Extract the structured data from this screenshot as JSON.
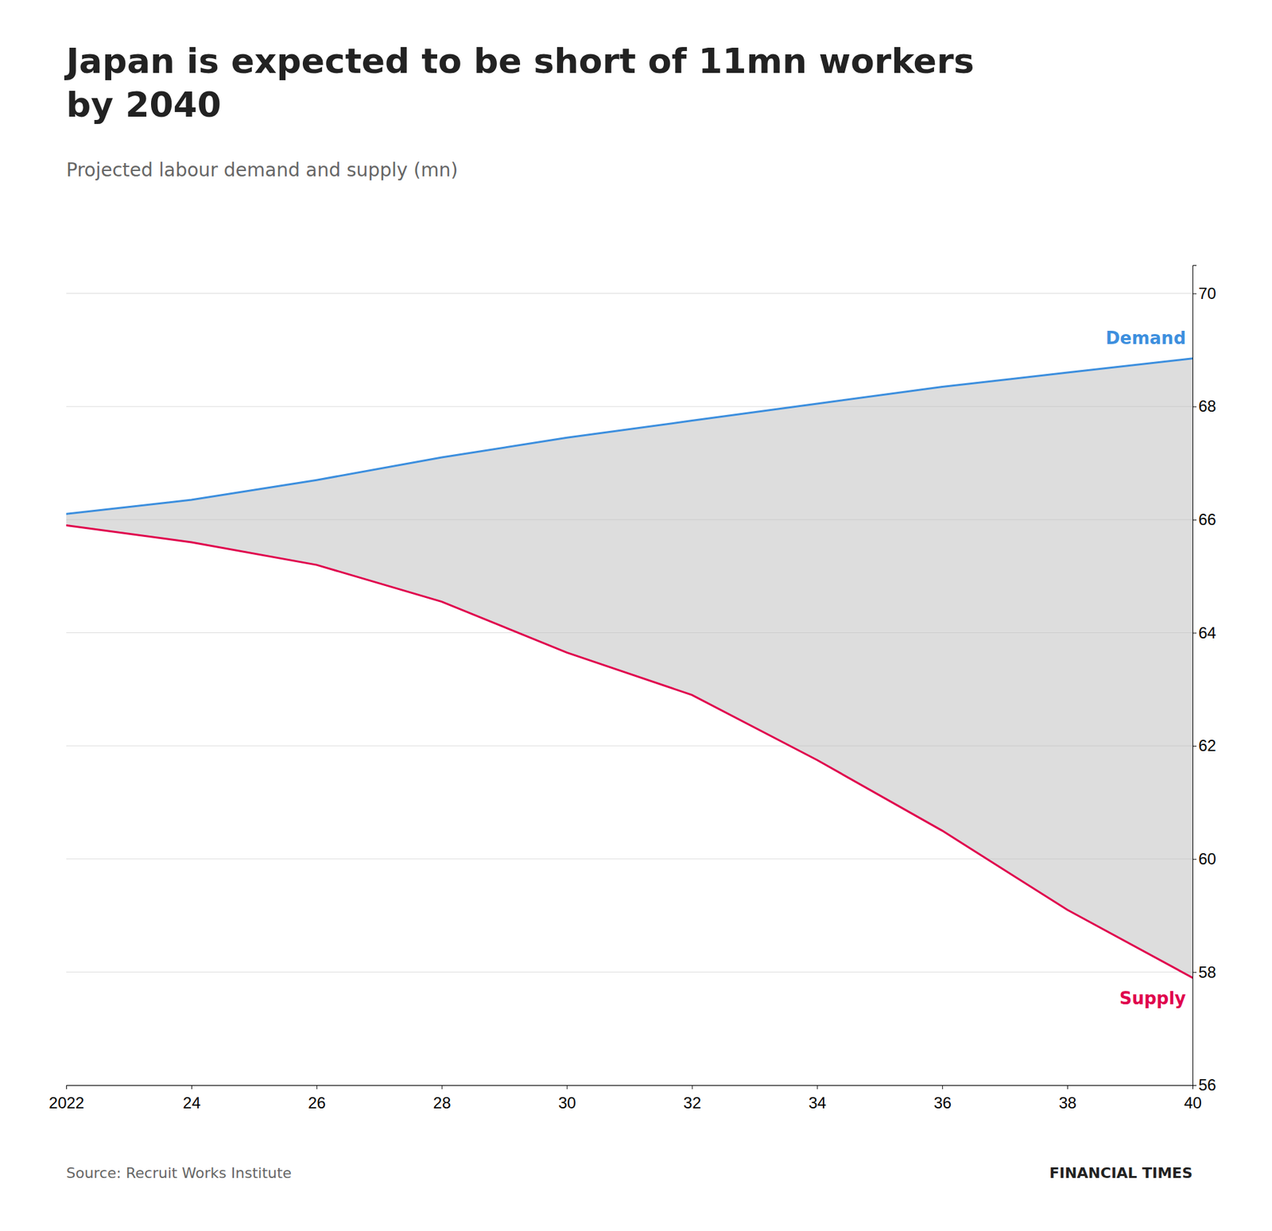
{
  "chart_data": {
    "type": "line",
    "title": "Japan is expected to be short of 11mn workers\nby 2040",
    "subtitle": "Projected labour demand and supply (mn)",
    "annotations": [
      "Source: Recruit Works Institute",
      "FINANCIAL TIMES"
    ],
    "x": [
      2022,
      2024,
      2026,
      2028,
      2030,
      2032,
      2034,
      2036,
      2038,
      2040
    ],
    "series": [
      {
        "name": "Demand",
        "color": "#3d8fde",
        "values": [
          66.1,
          66.35,
          66.7,
          67.1,
          67.45,
          67.75,
          68.05,
          68.35,
          68.6,
          68.85
        ]
      },
      {
        "name": "Supply",
        "color": "#e0004d",
        "values": [
          65.9,
          65.6,
          65.2,
          64.55,
          63.65,
          62.9,
          61.75,
          60.5,
          59.1,
          57.9
        ]
      }
    ],
    "xlim": [
      2022,
      2040
    ],
    "xticks": [
      2022,
      {
        "value": 2024,
        "label": "24"
      },
      {
        "value": 2026,
        "label": "26"
      },
      {
        "value": 2028,
        "label": "28"
      },
      {
        "value": 2030,
        "label": "30"
      },
      {
        "value": 2032,
        "label": "32"
      },
      {
        "value": 2034,
        "label": "34"
      },
      {
        "value": 2036,
        "label": "36"
      },
      {
        "value": 2038,
        "label": "38"
      },
      {
        "value": 2040,
        "label": "40"
      }
    ],
    "ylim": [
      56,
      70.5
    ],
    "yticks": [
      56,
      58,
      60,
      62,
      64,
      66,
      68,
      70
    ],
    "grid": true
  }
}
